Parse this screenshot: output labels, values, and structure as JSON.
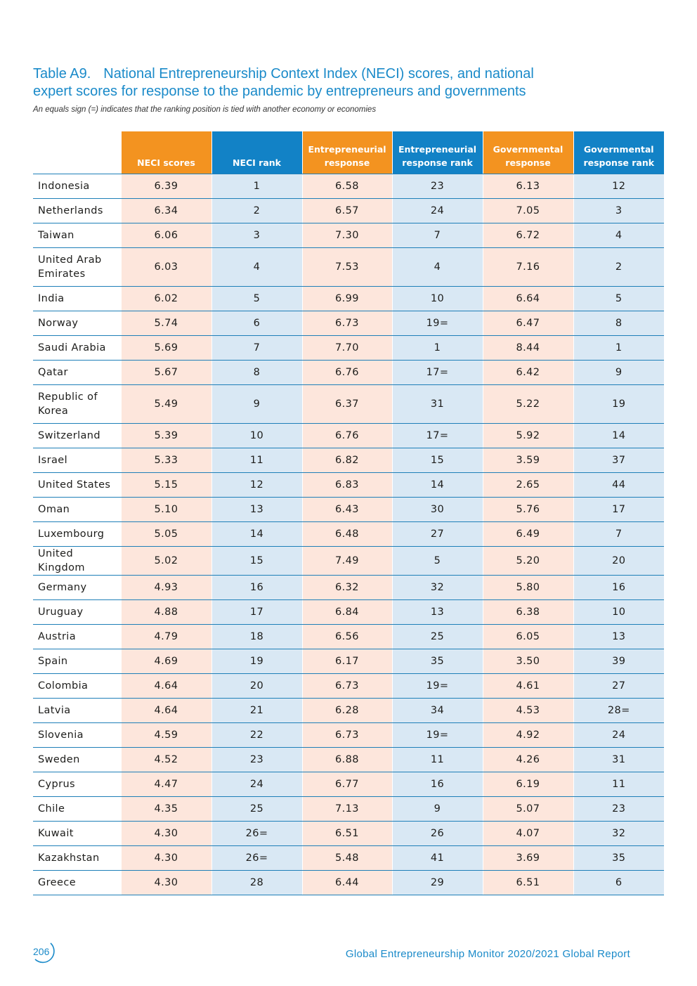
{
  "title": {
    "label": "Table A9.",
    "line1": "National Entrepreneurship Context Index (NECI) scores, and national",
    "line2": "expert scores for response to the pandemic by entrepreneurs and governments"
  },
  "note": "An equals sign (=) indicates that the ranking position is tied with another economy or economies",
  "headers": {
    "neci_scores": "NECI scores",
    "neci_rank": "NECI rank",
    "ent_response_1": "Entrepreneurial",
    "ent_response_2": "response",
    "ent_rank_1": "Entrepreneurial",
    "ent_rank_2": "response rank",
    "gov_response_1": "Governmental",
    "gov_response_2": "response",
    "gov_rank_1": "Governmental",
    "gov_rank_2": "response rank"
  },
  "colors": {
    "orange_header": "#f39320",
    "blue_header": "#1282c6",
    "orange_cell": "#fde6dc",
    "blue_cell": "#d9e8f4",
    "accent_text": "#1a8ac9"
  },
  "rows": [
    [
      "Indonesia",
      "6.39",
      "1",
      "6.58",
      "23",
      "6.13",
      "12"
    ],
    [
      "Netherlands",
      "6.34",
      "2",
      "6.57",
      "24",
      "7.05",
      "3"
    ],
    [
      "Taiwan",
      "6.06",
      "3",
      "7.30",
      "7",
      "6.72",
      "4"
    ],
    [
      "United Arab Emirates",
      "6.03",
      "4",
      "7.53",
      "4",
      "7.16",
      "2"
    ],
    [
      "India",
      "6.02",
      "5",
      "6.99",
      "10",
      "6.64",
      "5"
    ],
    [
      "Norway",
      "5.74",
      "6",
      "6.73",
      "19=",
      "6.47",
      "8"
    ],
    [
      "Saudi Arabia",
      "5.69",
      "7",
      "7.70",
      "1",
      "8.44",
      "1"
    ],
    [
      "Qatar",
      "5.67",
      "8",
      "6.76",
      "17=",
      "6.42",
      "9"
    ],
    [
      "Republic of Korea",
      "5.49",
      "9",
      "6.37",
      "31",
      "5.22",
      "19"
    ],
    [
      "Switzerland",
      "5.39",
      "10",
      "6.76",
      "17=",
      "5.92",
      "14"
    ],
    [
      "Israel",
      "5.33",
      "11",
      "6.82",
      "15",
      "3.59",
      "37"
    ],
    [
      "United States",
      "5.15",
      "12",
      "6.83",
      "14",
      "2.65",
      "44"
    ],
    [
      "Oman",
      "5.10",
      "13",
      "6.43",
      "30",
      "5.76",
      "17"
    ],
    [
      "Luxembourg",
      "5.05",
      "14",
      "6.48",
      "27",
      "6.49",
      "7"
    ],
    [
      "United Kingdom",
      "5.02",
      "15",
      "7.49",
      "5",
      "5.20",
      "20"
    ],
    [
      "Germany",
      "4.93",
      "16",
      "6.32",
      "32",
      "5.80",
      "16"
    ],
    [
      "Uruguay",
      "4.88",
      "17",
      "6.84",
      "13",
      "6.38",
      "10"
    ],
    [
      "Austria",
      "4.79",
      "18",
      "6.56",
      "25",
      "6.05",
      "13"
    ],
    [
      "Spain",
      "4.69",
      "19",
      "6.17",
      "35",
      "3.50",
      "39"
    ],
    [
      "Colombia",
      "4.64",
      "20",
      "6.73",
      "19=",
      "4.61",
      "27"
    ],
    [
      "Latvia",
      "4.64",
      "21",
      "6.28",
      "34",
      "4.53",
      "28="
    ],
    [
      "Slovenia",
      "4.59",
      "22",
      "6.73",
      "19=",
      "4.92",
      "24"
    ],
    [
      "Sweden",
      "4.52",
      "23",
      "6.88",
      "11",
      "4.26",
      "31"
    ],
    [
      "Cyprus",
      "4.47",
      "24",
      "6.77",
      "16",
      "6.19",
      "11"
    ],
    [
      "Chile",
      "4.35",
      "25",
      "7.13",
      "9",
      "5.07",
      "23"
    ],
    [
      "Kuwait",
      "4.30",
      "26=",
      "6.51",
      "26",
      "4.07",
      "32"
    ],
    [
      "Kazakhstan",
      "4.30",
      "26=",
      "5.48",
      "41",
      "3.69",
      "35"
    ],
    [
      "Greece",
      "4.30",
      "28",
      "6.44",
      "29",
      "6.51",
      "6"
    ]
  ],
  "footer": {
    "page_number": "206",
    "report": "Global Entrepreneurship Monitor 2020/2021 Global Report"
  }
}
